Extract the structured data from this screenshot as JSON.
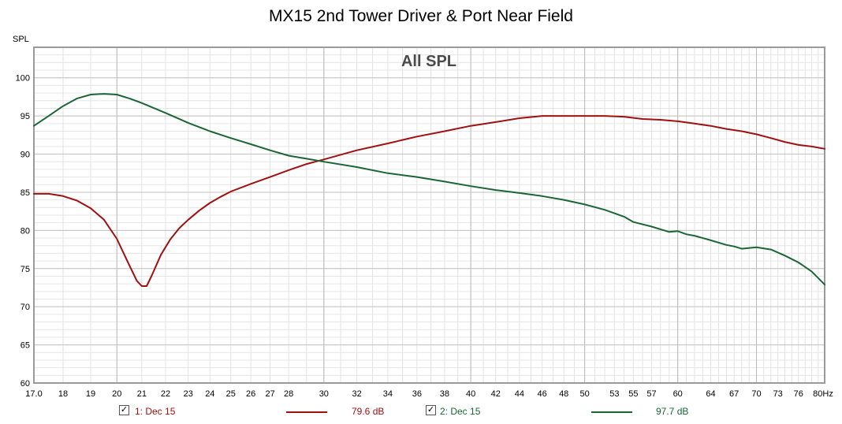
{
  "title": "MX15 2nd Tower Driver & Port Near Field",
  "chart_data": {
    "type": "line",
    "overlay_label": "All SPL",
    "ylabel": "SPL",
    "x_unit_label": "80Hz",
    "xlim": [
      17.0,
      80
    ],
    "ylim": [
      60,
      104
    ],
    "x_scale": "log",
    "grid": true,
    "x_ticks": [
      {
        "v": 17,
        "label": "17.0"
      },
      {
        "v": 18,
        "label": "18"
      },
      {
        "v": 19,
        "label": "19"
      },
      {
        "v": 20,
        "label": "20"
      },
      {
        "v": 21,
        "label": "21"
      },
      {
        "v": 22,
        "label": "22"
      },
      {
        "v": 23,
        "label": "23"
      },
      {
        "v": 24,
        "label": "24"
      },
      {
        "v": 25,
        "label": "25"
      },
      {
        "v": 26,
        "label": "26"
      },
      {
        "v": 27,
        "label": "27"
      },
      {
        "v": 28,
        "label": "28"
      },
      {
        "v": 30,
        "label": "30"
      },
      {
        "v": 32,
        "label": "32"
      },
      {
        "v": 34,
        "label": "34"
      },
      {
        "v": 36,
        "label": "36"
      },
      {
        "v": 38,
        "label": "38"
      },
      {
        "v": 40,
        "label": "40"
      },
      {
        "v": 42,
        "label": "42"
      },
      {
        "v": 44,
        "label": "44"
      },
      {
        "v": 46,
        "label": "46"
      },
      {
        "v": 48,
        "label": "48"
      },
      {
        "v": 50,
        "label": "50"
      },
      {
        "v": 53,
        "label": "53"
      },
      {
        "v": 55,
        "label": "55"
      },
      {
        "v": 57,
        "label": "57"
      },
      {
        "v": 60,
        "label": "60"
      },
      {
        "v": 64,
        "label": "64"
      },
      {
        "v": 67,
        "label": "67"
      },
      {
        "v": 70,
        "label": "70"
      },
      {
        "v": 73,
        "label": "73"
      },
      {
        "v": 76,
        "label": "76"
      }
    ],
    "y_ticks": [
      60,
      65,
      70,
      75,
      80,
      85,
      90,
      95,
      100
    ],
    "series": [
      {
        "name": "1: Dec 15",
        "color": "#a01010",
        "value_label": "79.6 dB",
        "checked": true,
        "x": [
          17.0,
          17.5,
          18.0,
          18.5,
          19.0,
          19.5,
          20.0,
          20.5,
          20.8,
          21.0,
          21.2,
          21.4,
          21.8,
          22.2,
          22.6,
          23.0,
          23.5,
          24,
          24.5,
          25,
          26,
          27,
          28,
          29,
          30,
          32,
          34,
          36,
          38,
          40,
          42,
          44,
          46,
          48,
          50,
          52,
          54,
          56,
          58,
          60,
          62,
          64,
          66,
          68,
          70,
          72,
          74,
          76,
          78,
          80
        ],
        "y": [
          84.8,
          84.8,
          84.5,
          83.9,
          82.9,
          81.4,
          78.9,
          75.4,
          73.4,
          72.7,
          72.7,
          74.0,
          76.8,
          78.8,
          80.3,
          81.4,
          82.6,
          83.6,
          84.4,
          85.1,
          86.1,
          87.0,
          87.9,
          88.7,
          89.3,
          90.5,
          91.4,
          92.3,
          93.0,
          93.7,
          94.2,
          94.7,
          95.0,
          95.0,
          95.0,
          95.0,
          94.9,
          94.6,
          94.5,
          94.3,
          94.0,
          93.7,
          93.3,
          93.0,
          92.6,
          92.1,
          91.6,
          91.2,
          91.0,
          90.7
        ]
      },
      {
        "name": "2: Dec 15",
        "color": "#1a6635",
        "value_label": "97.7 dB",
        "checked": true,
        "x": [
          17.0,
          17.5,
          18.0,
          18.5,
          19.0,
          19.5,
          20.0,
          20.5,
          21,
          22,
          23,
          24,
          25,
          26,
          27,
          28,
          29,
          30,
          32,
          34,
          36,
          38,
          40,
          42,
          44,
          46,
          48,
          50,
          52,
          54,
          55,
          57,
          59,
          60,
          61,
          62,
          64,
          66,
          67,
          68,
          70,
          72,
          73,
          74,
          76,
          78,
          80
        ],
        "y": [
          93.7,
          95.0,
          96.3,
          97.3,
          97.8,
          97.9,
          97.8,
          97.3,
          96.7,
          95.4,
          94.1,
          93.0,
          92.1,
          91.3,
          90.5,
          89.8,
          89.4,
          89.0,
          88.3,
          87.5,
          87.0,
          86.4,
          85.8,
          85.3,
          84.9,
          84.5,
          84.0,
          83.4,
          82.7,
          81.8,
          81.1,
          80.5,
          79.8,
          79.9,
          79.5,
          79.3,
          78.7,
          78.1,
          77.9,
          77.6,
          77.8,
          77.5,
          77.1,
          76.7,
          75.8,
          74.6,
          72.9
        ]
      }
    ]
  },
  "legend": {
    "items": [
      {
        "label": "1: Dec 15",
        "value": "79.6 dB",
        "color": "#a01010"
      },
      {
        "label": "2: Dec 15",
        "value": "97.7 dB",
        "color": "#1a6635"
      }
    ]
  }
}
